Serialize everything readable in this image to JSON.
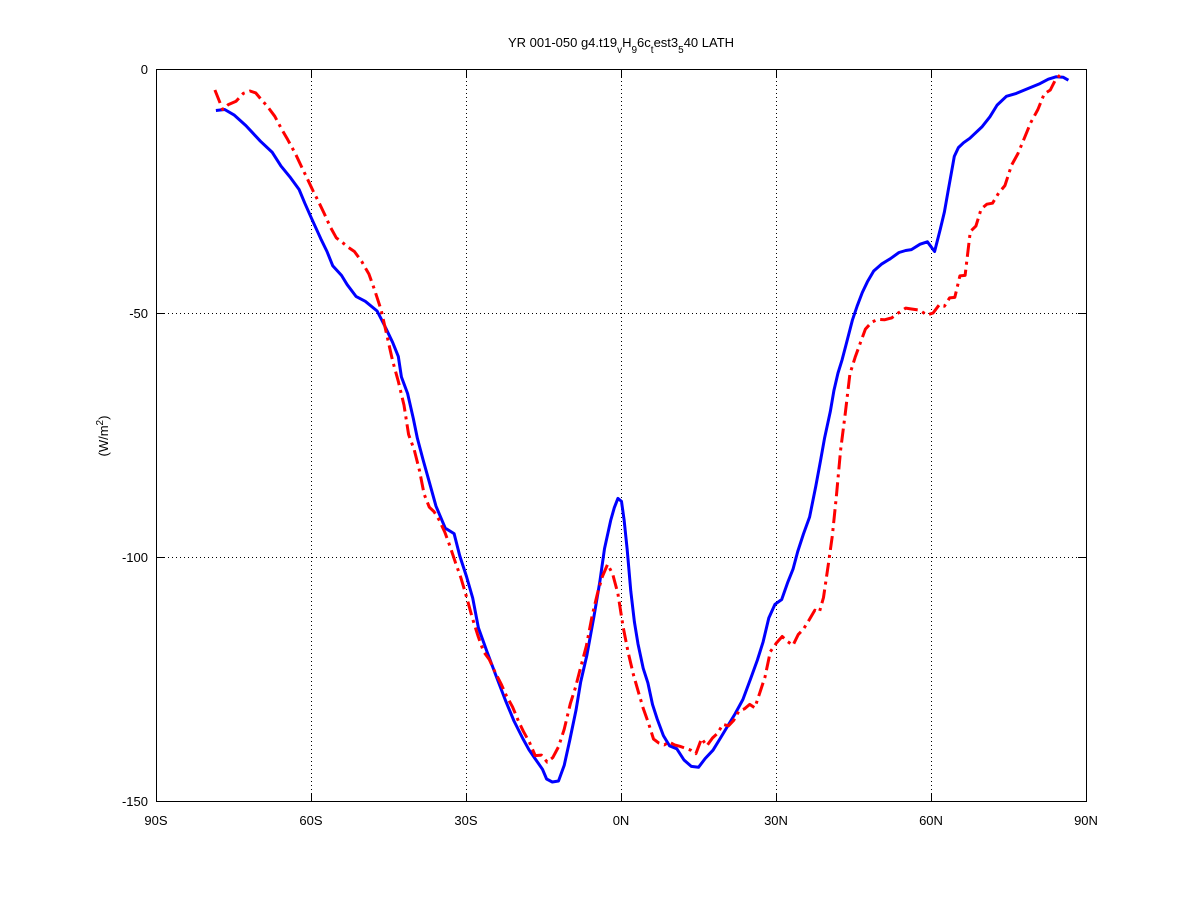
{
  "chart_data": {
    "type": "line",
    "title": {
      "parts": [
        {
          "t": "YR 001-050 g4.t19",
          "s": "base"
        },
        {
          "t": "v",
          "s": "sub"
        },
        {
          "t": "H",
          "s": "base"
        },
        {
          "t": "9",
          "s": "sub"
        },
        {
          "t": "6c",
          "s": "base"
        },
        {
          "t": "t",
          "s": "sub"
        },
        {
          "t": "est3",
          "s": "base"
        },
        {
          "t": "5",
          "s": "sub"
        },
        {
          "t": "40 LATH",
          "s": "base"
        }
      ]
    },
    "ylabel": {
      "base": "(W/m",
      "sup": "2",
      "end": ")"
    },
    "xlabel": "",
    "xlim": [
      -90,
      90
    ],
    "ylim": [
      -150,
      0
    ],
    "xticks": [
      {
        "v": -90,
        "label": "90S"
      },
      {
        "v": -60,
        "label": "60S"
      },
      {
        "v": -30,
        "label": "30S"
      },
      {
        "v": 0,
        "label": "0N"
      },
      {
        "v": 30,
        "label": "30N"
      },
      {
        "v": 60,
        "label": "60N"
      },
      {
        "v": 90,
        "label": "90N"
      }
    ],
    "yticks": [
      {
        "v": 0,
        "label": "0"
      },
      {
        "v": -50,
        "label": "-50"
      },
      {
        "v": -100,
        "label": "-100"
      },
      {
        "v": -150,
        "label": "-150"
      }
    ],
    "grid": true,
    "series": [
      {
        "color": "#0000ff",
        "style": "solid",
        "x": [
          -78.4,
          -76.7,
          -74.9,
          -72.6,
          -69.8,
          -67.5,
          -65.8,
          -64.1,
          -62.3,
          -61.2,
          -59.9,
          -58.1,
          -56.9,
          -55.8,
          -54.1,
          -53.0,
          -51.3,
          -49.5,
          -47.2,
          -45.9,
          -44.2,
          -43.1,
          -42.5,
          -41.3,
          -40.2,
          -39.4,
          -38.3,
          -37.0,
          -35.8,
          -34.0,
          -32.3,
          -31.2,
          -29.9,
          -28.7,
          -27.6,
          -25.9,
          -24.1,
          -22.4,
          -20.7,
          -19.0,
          -17.8,
          -16.7,
          -15.2,
          -14.4,
          -13.3,
          -12.1,
          -11.0,
          -9.9,
          -8.7,
          -7.8,
          -6.6,
          -5.2,
          -4.1,
          -3.2,
          -2.0,
          -1.3,
          -0.6,
          0.1,
          0.6,
          1.2,
          1.9,
          2.6,
          3.3,
          4.3,
          5.2,
          6.1,
          7.0,
          8.2,
          9.4,
          10.8,
          12.2,
          13.6,
          15.0,
          16.3,
          17.8,
          19.3,
          20.9,
          22.1,
          23.6,
          25.1,
          26.4,
          27.5,
          28.6,
          29.8,
          31.1,
          32.3,
          33.3,
          34.2,
          35.3,
          36.5,
          37.7,
          38.6,
          39.4,
          40.5,
          41.2,
          42.0,
          42.8,
          43.6,
          44.8,
          45.7,
          46.7,
          47.7,
          48.9,
          50.4,
          52.1,
          53.8,
          55.1,
          56.2,
          57.9,
          59.3,
          60.7,
          61.8,
          62.6,
          63.3,
          64.0,
          64.5,
          65.3,
          66.3,
          67.5,
          68.3,
          69.9,
          71.4,
          72.8,
          74.6,
          76.5,
          78.8,
          81.1,
          82.7,
          84.2,
          85.6,
          86.6
        ],
        "y": [
          -8.5,
          -8.3,
          -9.4,
          -11.6,
          -14.8,
          -17.1,
          -19.9,
          -22.1,
          -24.7,
          -27.5,
          -30.6,
          -34.8,
          -37.4,
          -40.3,
          -42.3,
          -44.2,
          -46.6,
          -47.6,
          -49.6,
          -52.3,
          -56.0,
          -58.9,
          -63.1,
          -66.5,
          -71.6,
          -75.7,
          -80.1,
          -85.0,
          -89.6,
          -94.1,
          -95.2,
          -99.8,
          -104.0,
          -108.4,
          -114.5,
          -119.5,
          -124.6,
          -129.3,
          -133.6,
          -137.2,
          -139.5,
          -141.2,
          -143.5,
          -145.5,
          -146.1,
          -145.9,
          -142.7,
          -137.5,
          -131.4,
          -125.6,
          -120.1,
          -112.0,
          -105.1,
          -98.3,
          -92.5,
          -89.9,
          -88.0,
          -88.6,
          -92.4,
          -98.5,
          -107.0,
          -113.3,
          -117.8,
          -122.8,
          -125.8,
          -130.2,
          -133.2,
          -136.6,
          -138.7,
          -139.3,
          -141.6,
          -142.9,
          -143.1,
          -141.3,
          -139.6,
          -137.0,
          -134.2,
          -132.1,
          -129.2,
          -124.9,
          -121.1,
          -117.4,
          -112.5,
          -109.7,
          -108.7,
          -105.1,
          -102.5,
          -98.9,
          -95.3,
          -91.8,
          -85.5,
          -80.4,
          -75.6,
          -70.2,
          -65.9,
          -62.3,
          -59.6,
          -56.3,
          -51.4,
          -48.6,
          -45.8,
          -43.6,
          -41.4,
          -40.0,
          -38.9,
          -37.6,
          -37.2,
          -37.0,
          -35.9,
          -35.4,
          -37.4,
          -32.8,
          -29.3,
          -25.0,
          -20.9,
          -17.9,
          -16.1,
          -15.1,
          -14.2,
          -13.4,
          -11.8,
          -9.8,
          -7.4,
          -5.6,
          -5.0,
          -4.0,
          -3.0,
          -2.1,
          -1.6,
          -1.7,
          -2.3
        ]
      },
      {
        "color": "#ff0000",
        "style": "dashdot",
        "x": [
          -78.6,
          -77.1,
          -76.0,
          -74.5,
          -73.1,
          -71.8,
          -70.7,
          -69.6,
          -68.4,
          -67.0,
          -65.8,
          -64.5,
          -63.0,
          -61.8,
          -60.8,
          -59.6,
          -58.5,
          -57.4,
          -56.3,
          -55.1,
          -54.0,
          -52.7,
          -51.6,
          -50.2,
          -48.8,
          -47.7,
          -46.4,
          -45.3,
          -44.2,
          -43.1,
          -42.0,
          -41.1,
          -40.0,
          -39.0,
          -38.1,
          -37.1,
          -36.2,
          -35.2,
          -34.1,
          -33.1,
          -32.0,
          -31.0,
          -29.8,
          -28.8,
          -27.7,
          -26.6,
          -25.5,
          -24.4,
          -23.2,
          -22.2,
          -21.0,
          -19.9,
          -18.9,
          -17.7,
          -16.6,
          -15.4,
          -14.3,
          -13.2,
          -12.1,
          -11.0,
          -9.8,
          -8.8,
          -7.7,
          -6.7,
          -5.6,
          -4.5,
          -3.6,
          -2.6,
          -1.6,
          -0.6,
          0.4,
          1.4,
          2.4,
          3.4,
          4.3,
          5.3,
          6.3,
          7.3,
          8.4,
          9.3,
          10.4,
          11.4,
          12.5,
          13.5,
          14.5,
          15.6,
          16.6,
          17.7,
          18.7,
          19.7,
          20.8,
          21.8,
          22.8,
          23.9,
          24.9,
          25.9,
          26.9,
          27.9,
          28.9,
          30.1,
          31.2,
          32.2,
          33.3,
          34.3,
          35.3,
          36.4,
          37.5,
          38.4,
          39.2,
          40.1,
          40.9,
          41.7,
          42.5,
          43.4,
          44.3,
          45.3,
          46.3,
          47.3,
          48.5,
          49.7,
          51.0,
          52.4,
          53.8,
          55.1,
          56.4,
          57.8,
          59.2,
          60.4,
          61.6,
          62.6,
          63.6,
          64.6,
          65.6,
          66.6,
          67.6,
          68.7,
          69.7,
          70.8,
          71.9,
          73.1,
          74.3,
          75.6,
          76.8,
          78.1,
          79.3,
          80.7,
          81.9,
          83.1,
          84.1,
          85.1
        ],
        "y": [
          -4.3,
          -8.3,
          -7.3,
          -6.6,
          -5.0,
          -4.5,
          -4.9,
          -6.3,
          -7.7,
          -9.7,
          -12.1,
          -14.5,
          -17.4,
          -20.1,
          -22.3,
          -25.0,
          -27.3,
          -29.7,
          -32.3,
          -34.6,
          -35.5,
          -36.6,
          -37.4,
          -39.4,
          -42.0,
          -45.2,
          -49.5,
          -54.7,
          -59.8,
          -64.0,
          -68.9,
          -74.9,
          -78.1,
          -82.3,
          -87.1,
          -89.8,
          -90.7,
          -92.4,
          -94.9,
          -97.8,
          -101.3,
          -104.2,
          -108.5,
          -112.4,
          -116.1,
          -119.4,
          -121.0,
          -123.5,
          -126.0,
          -128.4,
          -130.7,
          -133.5,
          -135.7,
          -138.0,
          -140.7,
          -140.6,
          -142.0,
          -141.1,
          -138.9,
          -135.3,
          -130.0,
          -126.7,
          -122.2,
          -118.2,
          -112.1,
          -107.2,
          -104.0,
          -101.5,
          -103.5,
          -107.5,
          -114.3,
          -119.6,
          -124.1,
          -127.8,
          -131.0,
          -134.0,
          -137.3,
          -138.1,
          -138.5,
          -137.9,
          -138.5,
          -138.8,
          -139.2,
          -139.6,
          -140.3,
          -137.2,
          -138.7,
          -137.1,
          -136.1,
          -134.3,
          -134.6,
          -133.5,
          -131.6,
          -131.1,
          -130.2,
          -130.9,
          -127.7,
          -124.5,
          -119.4,
          -117.6,
          -116.3,
          -117.3,
          -118.1,
          -115.9,
          -114.8,
          -112.9,
          -110.9,
          -111.3,
          -108.3,
          -101.7,
          -95.7,
          -87.5,
          -78.1,
          -70.7,
          -62.5,
          -59.1,
          -56.2,
          -53.3,
          -51.9,
          -51.3,
          -51.4,
          -51.0,
          -49.9,
          -49.0,
          -49.2,
          -49.4,
          -50.4,
          -50.0,
          -48.3,
          -48.6,
          -46.9,
          -46.8,
          -42.4,
          -42.3,
          -33.3,
          -32.2,
          -28.7,
          -27.7,
          -27.5,
          -25.4,
          -23.9,
          -19.7,
          -17.4,
          -14.1,
          -11.0,
          -8.3,
          -5.1,
          -4.3,
          -2.2,
          -1.1
        ]
      }
    ]
  }
}
